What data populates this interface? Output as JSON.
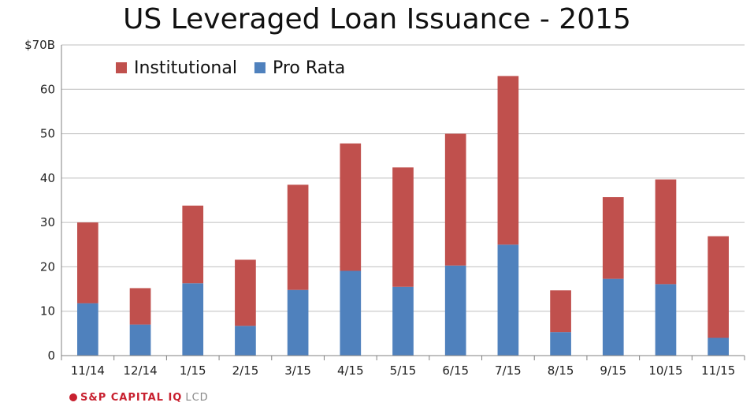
{
  "chart_data": {
    "type": "bar",
    "stacked": true,
    "title": "US Leveraged Loan Issuance - 2015",
    "categories": [
      "11/14",
      "12/14",
      "1/15",
      "2/15",
      "3/15",
      "4/15",
      "5/15",
      "6/15",
      "7/15",
      "8/15",
      "9/15",
      "10/15",
      "11/15"
    ],
    "series": [
      {
        "name": "Pro Rata",
        "color": "#4f81bd",
        "values": [
          11.8,
          7.0,
          16.3,
          6.7,
          14.8,
          19.1,
          15.5,
          20.3,
          25.0,
          5.3,
          17.3,
          16.1,
          4.0
        ]
      },
      {
        "name": "Institutional",
        "color": "#c0504d",
        "values": [
          18.2,
          8.2,
          17.5,
          14.9,
          23.7,
          28.7,
          26.9,
          29.7,
          38.0,
          9.4,
          18.4,
          23.6,
          22.9
        ]
      }
    ],
    "ylim": [
      0,
      70
    ],
    "yticks": [
      "0",
      "10",
      "20",
      "30",
      "40",
      "50",
      "60",
      "$70B"
    ],
    "grid": true,
    "legend": "top-left"
  },
  "footer": {
    "brand": "S&P CAPITAL IQ",
    "suffix": "LCD"
  }
}
